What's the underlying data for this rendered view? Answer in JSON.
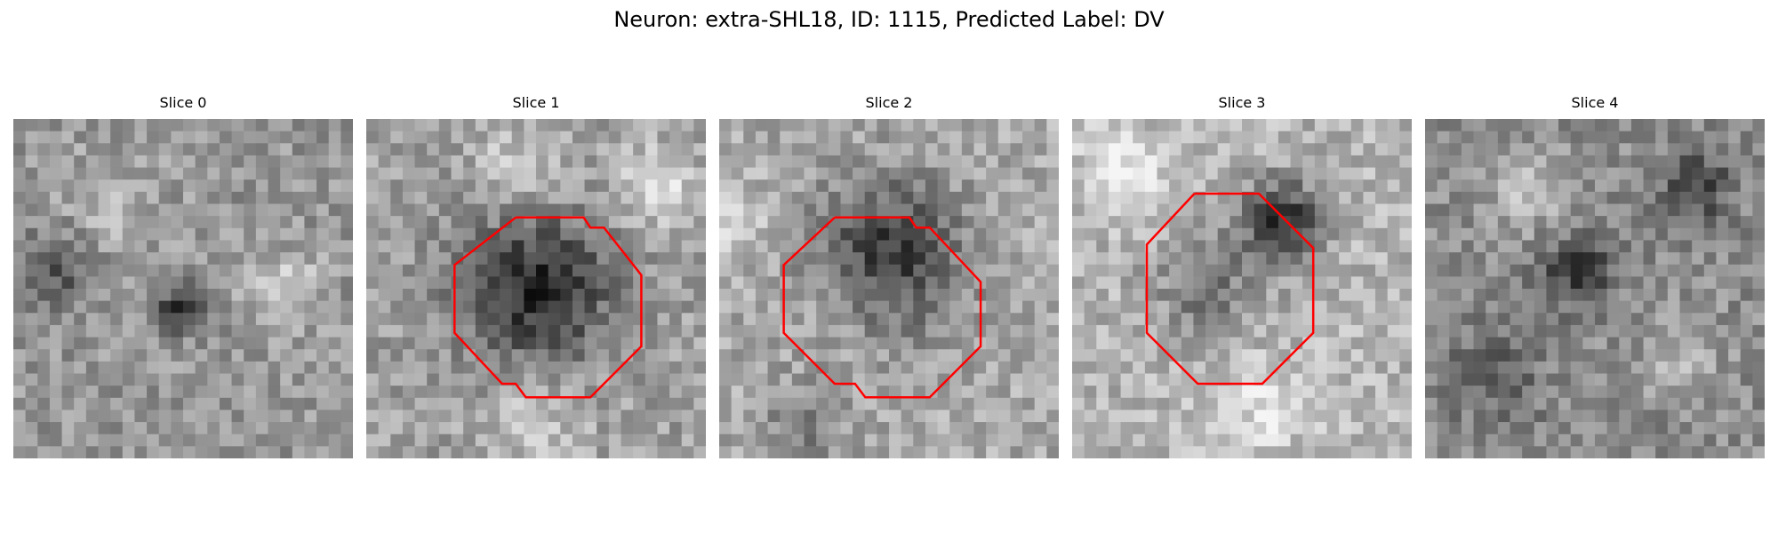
{
  "figure": {
    "title": "Neuron: extra-SHL18, ID: 1115, Predicted Label: DV"
  },
  "slices": [
    {
      "title": "Slice 0",
      "has_contour": false,
      "image_seed": 11
    },
    {
      "title": "Slice 1",
      "has_contour": true,
      "image_seed": 23
    },
    {
      "title": "Slice 2",
      "has_contour": true,
      "image_seed": 37
    },
    {
      "title": "Slice 3",
      "has_contour": true,
      "image_seed": 41
    },
    {
      "title": "Slice 4",
      "has_contour": false,
      "image_seed": 53
    }
  ],
  "colors": {
    "contour": "#ff0000",
    "background": "#ffffff"
  }
}
